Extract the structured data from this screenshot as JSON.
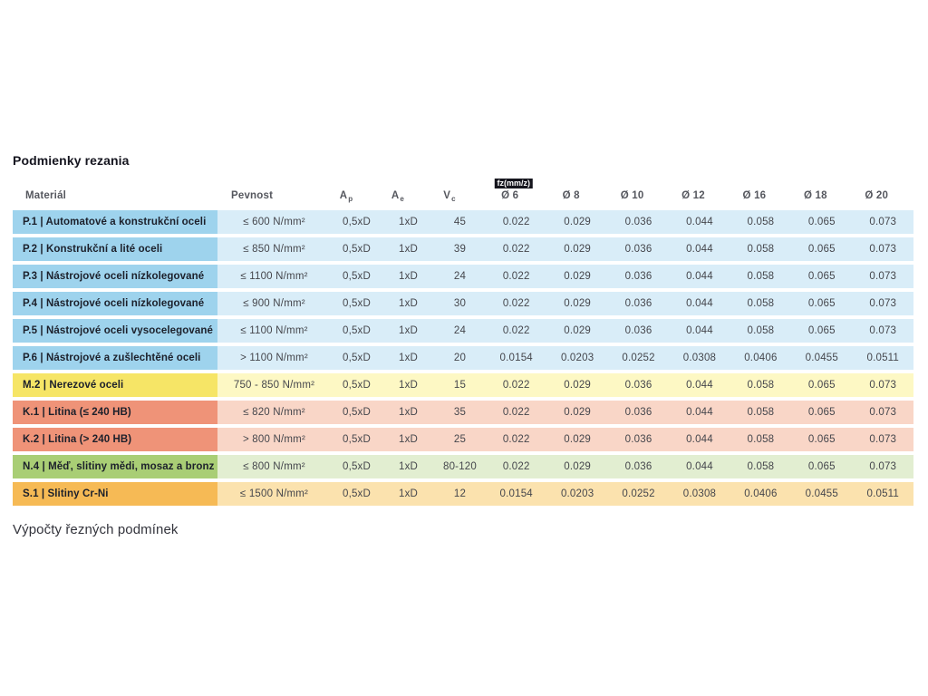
{
  "page": {
    "title": "Podmienky rezania",
    "footer": "Výpočty řezných podmínek"
  },
  "table": {
    "headers": {
      "material": "Materiál",
      "pevnost": "Pevnost",
      "ap": {
        "base": "A",
        "sub": "p"
      },
      "ae": {
        "base": "A",
        "sub": "e"
      },
      "vc": {
        "base": "V",
        "sub": "c"
      },
      "fz_badge": "fz(mm/z)",
      "diameters": [
        "Ø 6",
        "Ø 8",
        "Ø 10",
        "Ø 12",
        "Ø 16",
        "Ø 18",
        "Ø 20"
      ]
    },
    "group_colors": {
      "P": {
        "dark": "#9ed3ed",
        "light": "#d9edf8"
      },
      "M": {
        "dark": "#f6e566",
        "light": "#fdf8c4"
      },
      "K": {
        "dark": "#ef9378",
        "light": "#f9d6c7"
      },
      "N": {
        "dark": "#a9ce75",
        "light": "#e2eed1"
      },
      "S": {
        "dark": "#f6ba55",
        "light": "#fbe2ae"
      }
    },
    "rows": [
      {
        "group": "P",
        "material": "P.1 | Automatové a konstrukční oceli",
        "pevnost": "≤ 600 N/mm²",
        "ap": "0,5xD",
        "ae": "1xD",
        "vc": "45",
        "fz": [
          "0.022",
          "0.029",
          "0.036",
          "0.044",
          "0.058",
          "0.065",
          "0.073"
        ]
      },
      {
        "group": "P",
        "material": "P.2 | Konstrukční a lité oceli",
        "pevnost": "≤ 850 N/mm²",
        "ap": "0,5xD",
        "ae": "1xD",
        "vc": "39",
        "fz": [
          "0.022",
          "0.029",
          "0.036",
          "0.044",
          "0.058",
          "0.065",
          "0.073"
        ]
      },
      {
        "group": "P",
        "material": "P.3 | Nástrojové oceli nízkolegované",
        "pevnost": "≤ 1100 N/mm²",
        "ap": "0,5xD",
        "ae": "1xD",
        "vc": "24",
        "fz": [
          "0.022",
          "0.029",
          "0.036",
          "0.044",
          "0.058",
          "0.065",
          "0.073"
        ]
      },
      {
        "group": "P",
        "material": "P.4 | Nástrojové oceli nízkolegované",
        "pevnost": "≤ 900 N/mm²",
        "ap": "0,5xD",
        "ae": "1xD",
        "vc": "30",
        "fz": [
          "0.022",
          "0.029",
          "0.036",
          "0.044",
          "0.058",
          "0.065",
          "0.073"
        ]
      },
      {
        "group": "P",
        "material": "P.5 | Nástrojové oceli vysocelegované",
        "pevnost": "≤ 1100 N/mm²",
        "ap": "0,5xD",
        "ae": "1xD",
        "vc": "24",
        "fz": [
          "0.022",
          "0.029",
          "0.036",
          "0.044",
          "0.058",
          "0.065",
          "0.073"
        ]
      },
      {
        "group": "P",
        "material": "P.6 | Nástrojové a zušlechtěné oceli",
        "pevnost": "> 1100 N/mm²",
        "ap": "0,5xD",
        "ae": "1xD",
        "vc": "20",
        "fz": [
          "0.0154",
          "0.0203",
          "0.0252",
          "0.0308",
          "0.0406",
          "0.0455",
          "0.0511"
        ]
      },
      {
        "group": "M",
        "material": "M.2 | Nerezové oceli",
        "pevnost": "750 - 850 N/mm²",
        "ap": "0,5xD",
        "ae": "1xD",
        "vc": "15",
        "fz": [
          "0.022",
          "0.029",
          "0.036",
          "0.044",
          "0.058",
          "0.065",
          "0.073"
        ]
      },
      {
        "group": "K",
        "material": "K.1 | Litina (≤ 240 HB)",
        "pevnost": "≤ 820 N/mm²",
        "ap": "0,5xD",
        "ae": "1xD",
        "vc": "35",
        "fz": [
          "0.022",
          "0.029",
          "0.036",
          "0.044",
          "0.058",
          "0.065",
          "0.073"
        ]
      },
      {
        "group": "K",
        "material": "K.2 | Litina (> 240 HB)",
        "pevnost": "> 800 N/mm²",
        "ap": "0,5xD",
        "ae": "1xD",
        "vc": "25",
        "fz": [
          "0.022",
          "0.029",
          "0.036",
          "0.044",
          "0.058",
          "0.065",
          "0.073"
        ]
      },
      {
        "group": "N",
        "material": "N.4 | Měď, slitiny mědi, mosaz a bronz",
        "pevnost": "≤ 800 N/mm²",
        "ap": "0,5xD",
        "ae": "1xD",
        "vc": "80-120",
        "fz": [
          "0.022",
          "0.029",
          "0.036",
          "0.044",
          "0.058",
          "0.065",
          "0.073"
        ]
      },
      {
        "group": "S",
        "material": "S.1 | Slitiny Cr-Ni",
        "pevnost": "≤ 1500 N/mm²",
        "ap": "0,5xD",
        "ae": "1xD",
        "vc": "12",
        "fz": [
          "0.0154",
          "0.0203",
          "0.0252",
          "0.0308",
          "0.0406",
          "0.0455",
          "0.0511"
        ]
      }
    ]
  }
}
